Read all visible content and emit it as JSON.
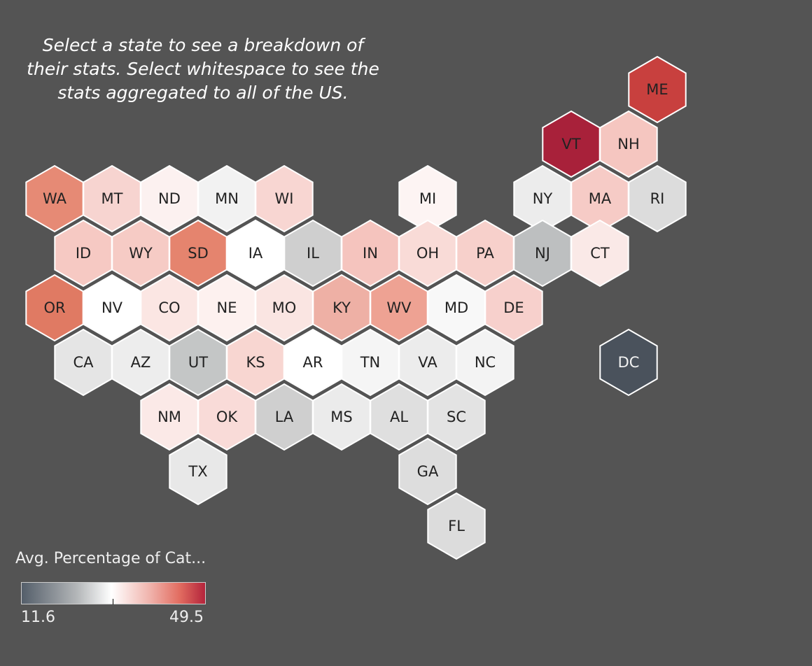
{
  "instructions": {
    "line1": "Select a state to see a breakdown of",
    "line2": "their stats.  Select whitespace to see the",
    "line3": "stats aggregated to all of the US."
  },
  "legend": {
    "title": "Avg. Percentage of Cat...",
    "min": "11.6",
    "max": "49.5",
    "colors": [
      "#545e6a",
      "#ffffff",
      "#b4243b"
    ]
  },
  "states": [
    {
      "abbr": "ME",
      "row": 0,
      "col": 10.5,
      "color": "#c8403e"
    },
    {
      "abbr": "VT",
      "row": 1,
      "col": 9,
      "color": "#a8213a"
    },
    {
      "abbr": "NH",
      "row": 1,
      "col": 10,
      "color": "#f5c6c0"
    },
    {
      "abbr": "WA",
      "row": 2,
      "col": 0,
      "color": "#e68a75"
    },
    {
      "abbr": "MT",
      "row": 2,
      "col": 1,
      "color": "#f7d4d0"
    },
    {
      "abbr": "ND",
      "row": 2,
      "col": 2,
      "color": "#fcf1f0"
    },
    {
      "abbr": "MN",
      "row": 2,
      "col": 3,
      "color": "#f2f2f2"
    },
    {
      "abbr": "WI",
      "row": 2,
      "col": 4,
      "color": "#f8d6d2"
    },
    {
      "abbr": "MI",
      "row": 2,
      "col": 6.5,
      "color": "#fdf4f3"
    },
    {
      "abbr": "NY",
      "row": 2,
      "col": 8.5,
      "color": "#ececec"
    },
    {
      "abbr": "MA",
      "row": 2,
      "col": 9.5,
      "color": "#f6cbc6"
    },
    {
      "abbr": "RI",
      "row": 2,
      "col": 10.5,
      "color": "#dcdcdc"
    },
    {
      "abbr": "ID",
      "row": 3,
      "col": 0.5,
      "color": "#f6c9c3"
    },
    {
      "abbr": "WY",
      "row": 3,
      "col": 1.5,
      "color": "#f6cbc5"
    },
    {
      "abbr": "SD",
      "row": 3,
      "col": 2.5,
      "color": "#e5846e"
    },
    {
      "abbr": "IA",
      "row": 3,
      "col": 3.5,
      "color": "#ffffff"
    },
    {
      "abbr": "IL",
      "row": 3,
      "col": 4.5,
      "color": "#cfcfcf"
    },
    {
      "abbr": "IN",
      "row": 3,
      "col": 5.5,
      "color": "#f5c4be"
    },
    {
      "abbr": "OH",
      "row": 3,
      "col": 6.5,
      "color": "#f9dbd7"
    },
    {
      "abbr": "PA",
      "row": 3,
      "col": 7.5,
      "color": "#f7d0cb"
    },
    {
      "abbr": "NJ",
      "row": 3,
      "col": 8.5,
      "color": "#bdbfc0"
    },
    {
      "abbr": "CT",
      "row": 3,
      "col": 9.5,
      "color": "#fae9e7"
    },
    {
      "abbr": "OR",
      "row": 4,
      "col": 0,
      "color": "#e07a63"
    },
    {
      "abbr": "NV",
      "row": 4,
      "col": 1,
      "color": "#ffffff"
    },
    {
      "abbr": "CO",
      "row": 4,
      "col": 2,
      "color": "#fbe6e3"
    },
    {
      "abbr": "NE",
      "row": 4,
      "col": 3,
      "color": "#fdf1ef"
    },
    {
      "abbr": "MO",
      "row": 4,
      "col": 4,
      "color": "#fae5e2"
    },
    {
      "abbr": "KY",
      "row": 4,
      "col": 5,
      "color": "#eeb0a5"
    },
    {
      "abbr": "WV",
      "row": 4,
      "col": 6,
      "color": "#eea293"
    },
    {
      "abbr": "MD",
      "row": 4,
      "col": 7,
      "color": "#f8f8f8"
    },
    {
      "abbr": "DE",
      "row": 4,
      "col": 8,
      "color": "#f7d0cc"
    },
    {
      "abbr": "CA",
      "row": 5,
      "col": 0.5,
      "color": "#e5e5e5"
    },
    {
      "abbr": "AZ",
      "row": 5,
      "col": 1.5,
      "color": "#ededed"
    },
    {
      "abbr": "UT",
      "row": 5,
      "col": 2.5,
      "color": "#c4c6c6"
    },
    {
      "abbr": "KS",
      "row": 5,
      "col": 3.5,
      "color": "#f8d6d1"
    },
    {
      "abbr": "AR",
      "row": 5,
      "col": 4.5,
      "color": "#ffffff"
    },
    {
      "abbr": "TN",
      "row": 5,
      "col": 5.5,
      "color": "#f5f5f5"
    },
    {
      "abbr": "VA",
      "row": 5,
      "col": 6.5,
      "color": "#ececec"
    },
    {
      "abbr": "NC",
      "row": 5,
      "col": 7.5,
      "color": "#f3f3f3"
    },
    {
      "abbr": "DC",
      "row": 5,
      "col": 10,
      "color": "#4a525c",
      "light": true
    },
    {
      "abbr": "NM",
      "row": 6,
      "col": 2,
      "color": "#fbe9e7"
    },
    {
      "abbr": "OK",
      "row": 6,
      "col": 3,
      "color": "#f9dbd8"
    },
    {
      "abbr": "LA",
      "row": 6,
      "col": 4,
      "color": "#cfcfcf"
    },
    {
      "abbr": "MS",
      "row": 6,
      "col": 5,
      "color": "#ebebeb"
    },
    {
      "abbr": "AL",
      "row": 6,
      "col": 6,
      "color": "#dfdfdf"
    },
    {
      "abbr": "SC",
      "row": 6,
      "col": 7,
      "color": "#e3e3e3"
    },
    {
      "abbr": "TX",
      "row": 7,
      "col": 2.5,
      "color": "#e8e8e8"
    },
    {
      "abbr": "GA",
      "row": 7,
      "col": 6.5,
      "color": "#dddddd"
    },
    {
      "abbr": "FL",
      "row": 8,
      "col": 7,
      "color": "#dcdcdc"
    }
  ]
}
